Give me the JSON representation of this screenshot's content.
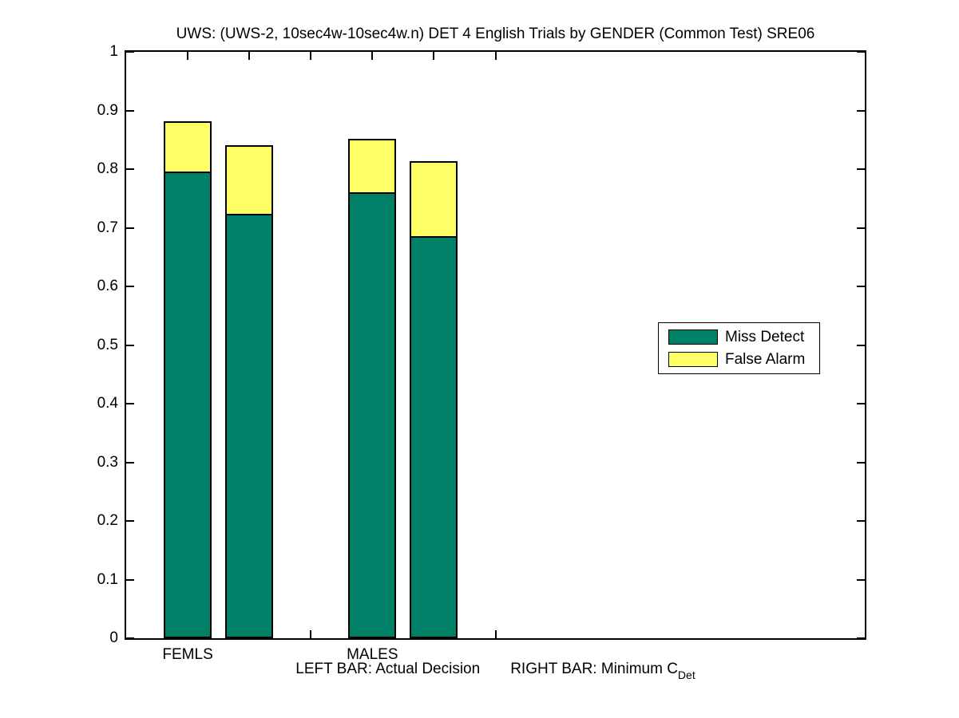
{
  "figure": {
    "title": "UWS: (UWS-2, 10sec4w-10sec4w.n) DET 4 English Trials by GENDER (Common Test) SRE06",
    "xlabel": {
      "left": "LEFT BAR: Actual Decision",
      "right": "RIGHT BAR: Minimum C",
      "subscript": "Det"
    },
    "background_color": "#ffffff"
  },
  "legend": {
    "position": "middle-right",
    "items": [
      {
        "label": "Miss Detect",
        "color": "#008066"
      },
      {
        "label": "False Alarm",
        "color": "#FFFF66"
      }
    ]
  },
  "chart_data": {
    "type": "bar",
    "stacked": true,
    "title": "UWS: (UWS-2, 10sec4w-10sec4w.n) DET 4 English Trials by GENDER (Common Test) SRE06",
    "xlabel": "LEFT BAR: Actual Decision    RIGHT BAR: Minimum C_Det",
    "ylabel": "",
    "grid": false,
    "legend_position": "middle-right",
    "ylim": [
      0,
      1
    ],
    "xlim": [
      0,
      12
    ],
    "yticks": [
      0,
      0.1,
      0.2,
      0.3,
      0.4,
      0.5,
      0.6,
      0.7,
      0.8,
      0.9,
      1
    ],
    "ytick_labels": [
      "0",
      "0.1",
      "0.2",
      "0.3",
      "0.4",
      "0.5",
      "0.6",
      "0.7",
      "0.8",
      "0.9",
      "1"
    ],
    "xticks": [
      1,
      2,
      3,
      4,
      5,
      6
    ],
    "xtick_labels": [
      "FEMLS",
      "",
      "",
      "MALES",
      "",
      ""
    ],
    "bar_width_units": 0.78,
    "series": [
      {
        "name": "Miss Detect",
        "color": "#008066",
        "values": [
          0.796,
          0.724,
          0.76,
          0.686
        ]
      },
      {
        "name": "False Alarm",
        "color": "#FFFF66",
        "values": [
          0.083,
          0.114,
          0.089,
          0.125
        ]
      }
    ],
    "bars": [
      {
        "x": 1,
        "group": "FEMLS",
        "bar": "Actual Decision",
        "miss_detect": 0.796,
        "false_alarm": 0.083,
        "total": 0.879
      },
      {
        "x": 2,
        "group": "FEMLS",
        "bar": "Minimum C_Det",
        "miss_detect": 0.724,
        "false_alarm": 0.114,
        "total": 0.838
      },
      {
        "x": 4,
        "group": "MALES",
        "bar": "Actual Decision",
        "miss_detect": 0.76,
        "false_alarm": 0.089,
        "total": 0.849
      },
      {
        "x": 5,
        "group": "MALES",
        "bar": "Minimum C_Det",
        "miss_detect": 0.686,
        "false_alarm": 0.125,
        "total": 0.811
      }
    ]
  }
}
